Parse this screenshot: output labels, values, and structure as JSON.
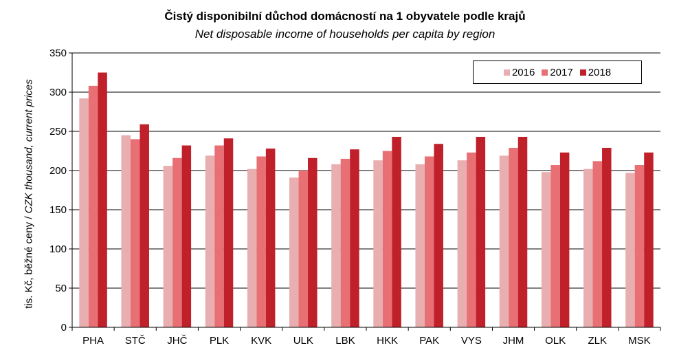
{
  "chart_data": {
    "type": "bar",
    "title": "Čistý disponibilní důchod domácností na 1 obyvatele podle krajů",
    "subtitle": "Net disposable income of households per capita by region",
    "ylabel_plain": "tis. Kč, běžné ceny / ",
    "ylabel_italic": "CZK thousand, current prices",
    "xlabel": "",
    "ylim": [
      0,
      350
    ],
    "yticks": [
      0,
      50,
      100,
      150,
      200,
      250,
      300,
      350
    ],
    "grid": true,
    "legend_position": "top-right",
    "categories": [
      "PHA",
      "STČ",
      "JHČ",
      "PLK",
      "KVK",
      "ULK",
      "LBK",
      "HKK",
      "PAK",
      "VYS",
      "JHM",
      "OLK",
      "ZLK",
      "MSK"
    ],
    "series": [
      {
        "name": "2016",
        "color": "#e8aeb0",
        "values": [
          292,
          245,
          206,
          219,
          202,
          191,
          208,
          213,
          208,
          213,
          219,
          198,
          202,
          197
        ]
      },
      {
        "name": "2017",
        "color": "#e87074",
        "values": [
          308,
          240,
          216,
          232,
          218,
          200,
          215,
          225,
          218,
          223,
          229,
          207,
          212,
          207
        ]
      },
      {
        "name": "2018",
        "color": "#c0202a",
        "values": [
          325,
          259,
          232,
          241,
          228,
          216,
          227,
          243,
          234,
          243,
          243,
          223,
          229,
          223
        ]
      }
    ]
  }
}
